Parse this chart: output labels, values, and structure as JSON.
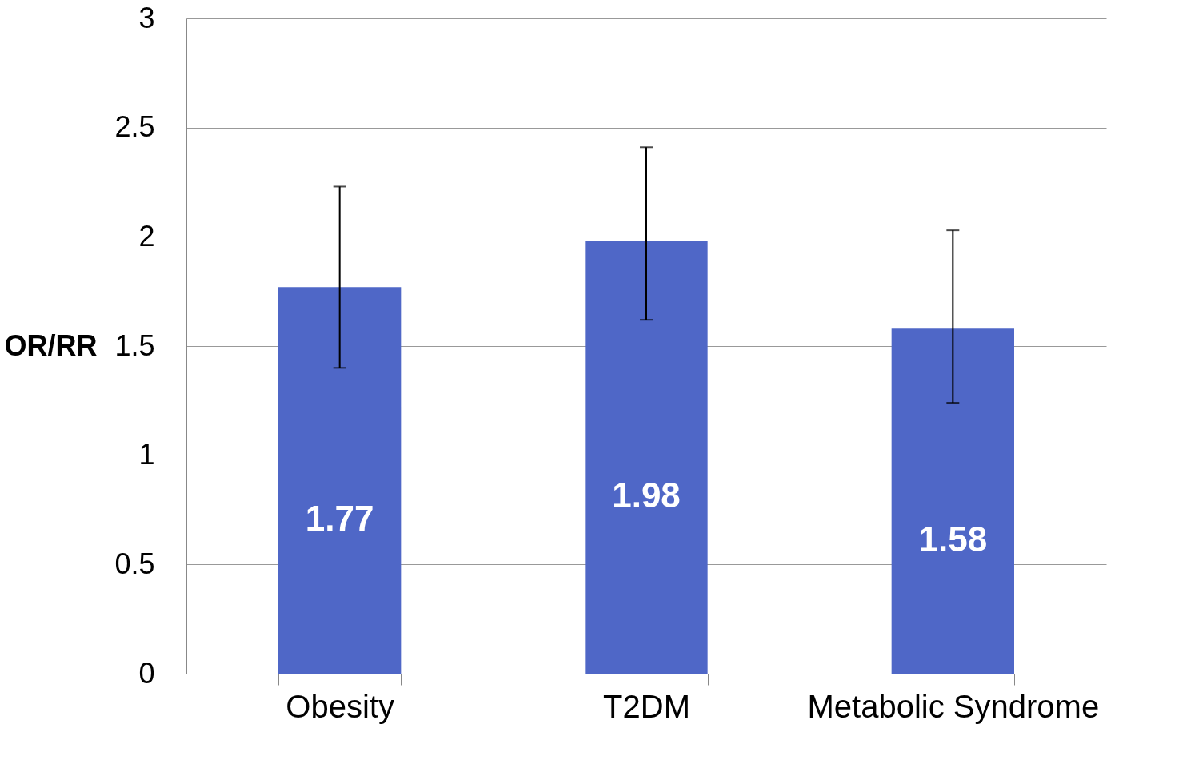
{
  "chart_data": {
    "type": "bar",
    "ylabel": "OR/RR",
    "categories": [
      "Obesity",
      "T2DM",
      "Metabolic Syndrome"
    ],
    "values": [
      1.77,
      1.98,
      1.58
    ],
    "color": "#4f67c7",
    "errors": [
      [
        1.4,
        2.23
      ],
      [
        1.62,
        2.41
      ],
      [
        1.24,
        2.03
      ]
    ],
    "ylim": [
      0,
      3
    ],
    "yticks": [
      0,
      0.5,
      1,
      1.5,
      2,
      2.5,
      3
    ],
    "grid": "y",
    "data_labels": true
  }
}
